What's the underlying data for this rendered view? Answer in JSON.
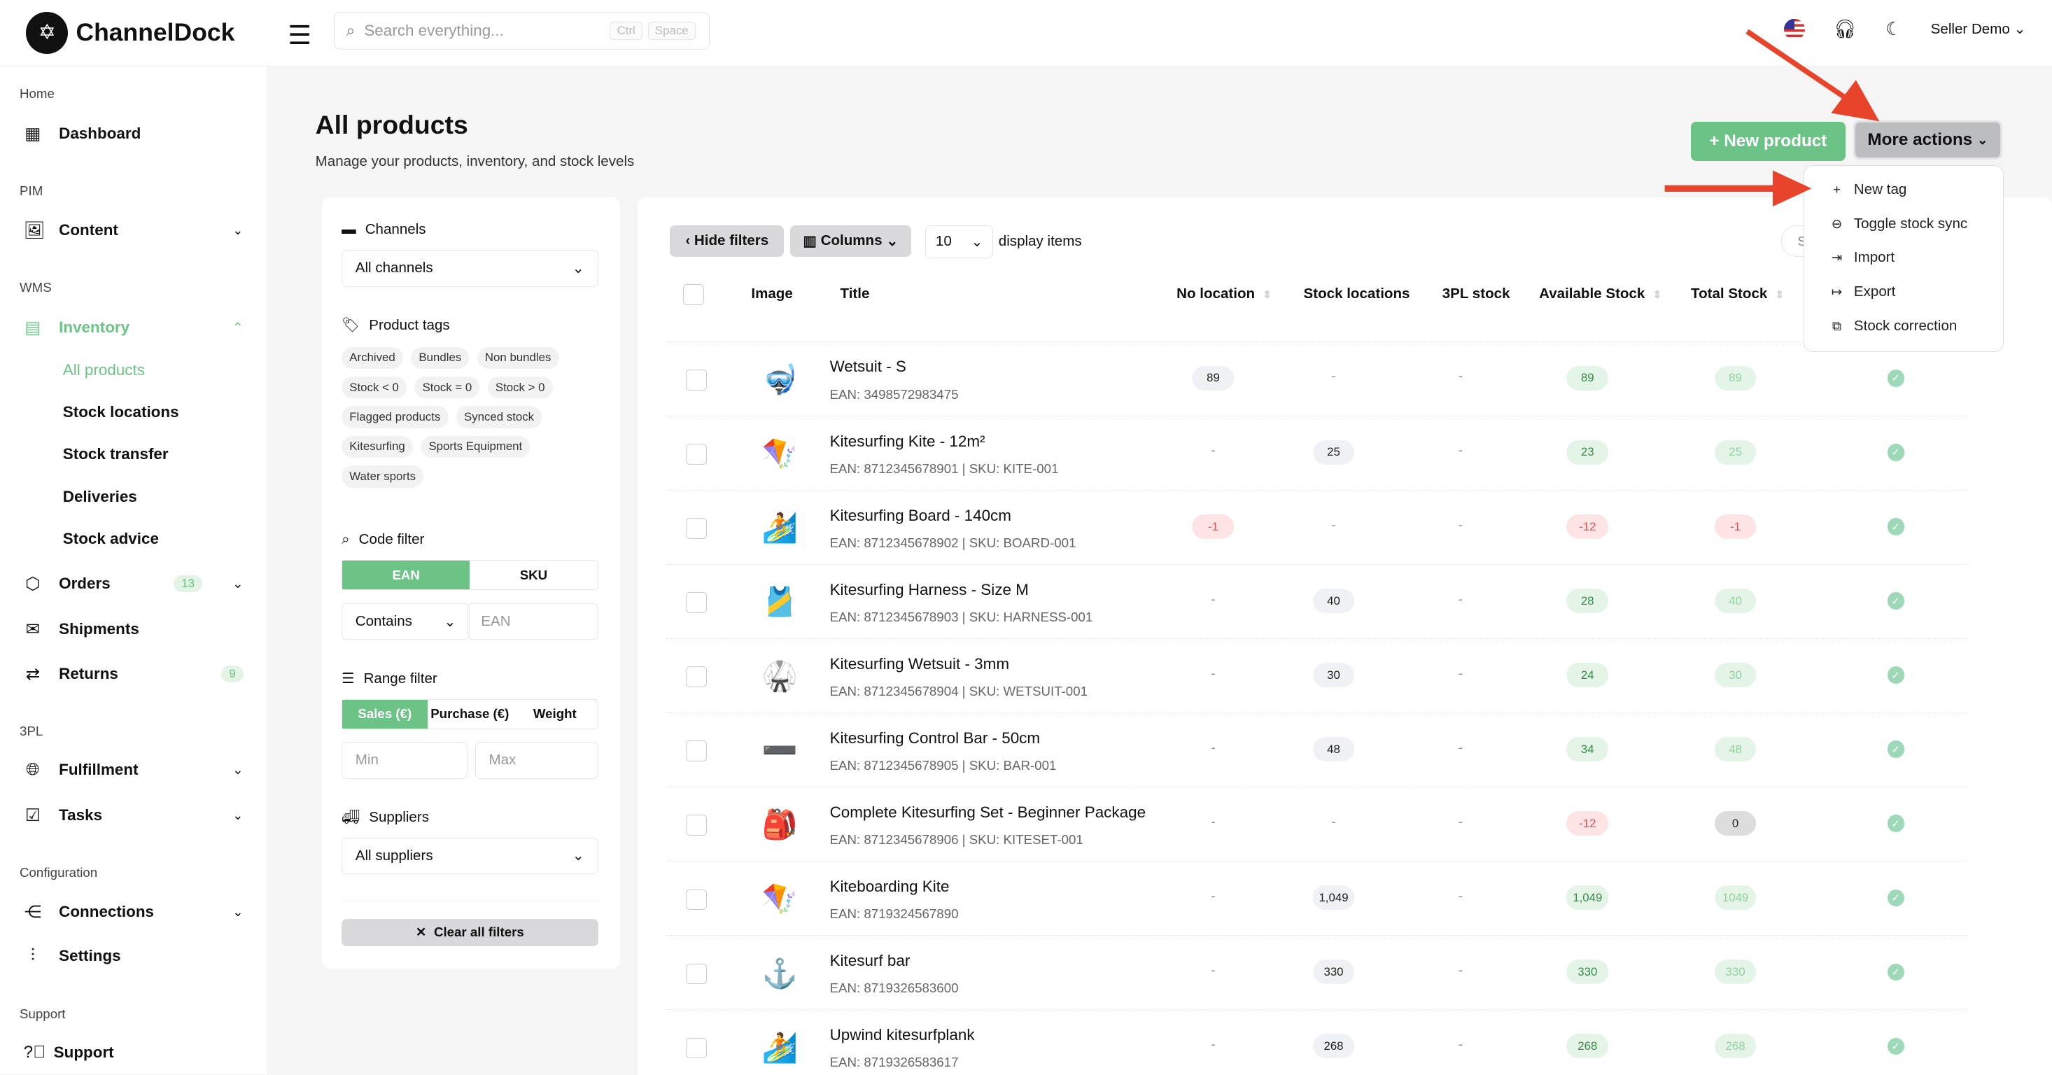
{
  "app": {
    "brand": "ChannelDock",
    "search_placeholder": "Search everything...",
    "kbd1": "Ctrl",
    "kbd2": "Space",
    "user": "Seller Demo"
  },
  "sidebar": {
    "sections": [
      "Home",
      "PIM",
      "WMS",
      "3PL",
      "Configuration",
      "Support"
    ],
    "items": [
      {
        "label": "Dashboard",
        "icon": "layout-icon"
      },
      {
        "label": "Content",
        "icon": "image-icon"
      },
      {
        "label": "Inventory",
        "icon": "table-icon"
      },
      {
        "label": "Orders",
        "icon": "box-icon",
        "count": "13"
      },
      {
        "label": "Shipments",
        "icon": "mail-icon"
      },
      {
        "label": "Returns",
        "icon": "return-icon",
        "count": "9"
      },
      {
        "label": "Fulfillment",
        "icon": "globe-icon"
      },
      {
        "label": "Tasks",
        "icon": "checkbox-icon"
      },
      {
        "label": "Connections",
        "icon": "share-icon"
      },
      {
        "label": "Settings",
        "icon": "sliders-icon"
      },
      {
        "label": "Support",
        "icon": "help-icon"
      }
    ],
    "inventory_sub": [
      "All products",
      "Stock locations",
      "Stock transfer",
      "Deliveries",
      "Stock advice"
    ]
  },
  "page": {
    "title": "All products",
    "subtitle": "Manage your products, inventory, and stock levels",
    "new_product": "+ New product",
    "more_actions": "More actions"
  },
  "menu": {
    "items": [
      "New tag",
      "Toggle stock sync",
      "Import",
      "Export",
      "Stock correction"
    ]
  },
  "filters": {
    "channels_label": "Channels",
    "channels_value": "All channels",
    "tags_label": "Product tags",
    "tags": [
      "Archived",
      "Bundles",
      "Non bundles",
      "Stock < 0",
      "Stock = 0",
      "Stock > 0",
      "Flagged products",
      "Synced stock",
      "Kitesurfing",
      "Sports Equipment",
      "Water sports"
    ],
    "code_label": "Code filter",
    "code_opts": [
      "EAN",
      "SKU"
    ],
    "contains": "Contains",
    "code_placeholder": "EAN",
    "range_label": "Range filter",
    "range_opts": [
      "Sales (€)",
      "Purchase (€)",
      "Weight"
    ],
    "min": "Min",
    "max": "Max",
    "suppliers_label": "Suppliers",
    "suppliers_value": "All suppliers",
    "clear": "Clear all filters"
  },
  "toolbar": {
    "hide_filters": "Hide filters",
    "columns": "Columns",
    "per_page": "10",
    "display_items": "display items",
    "search_partial": "S"
  },
  "table": {
    "headers": [
      "Image",
      "Title",
      "No location",
      "Stock locations",
      "3PL stock",
      "Available Stock",
      "Total Stock"
    ],
    "rows": [
      {
        "title": "Wetsuit - S",
        "code": "EAN: 3498572983475",
        "img": "🤿",
        "noloc": "89",
        "locs": "-",
        "tpl": "-",
        "avail": "89",
        "total": "89",
        "nc": "grey",
        "ac": "green",
        "tc": "lgreen"
      },
      {
        "title": "Kitesurfing Kite - 12m²",
        "code": "EAN: 8712345678901 | SKU: KITE-001",
        "img": "🪁",
        "noloc": "-",
        "locs": "25",
        "tpl": "-",
        "avail": "23",
        "total": "25",
        "ac": "green",
        "tc": "lgreen"
      },
      {
        "title": "Kitesurfing Board - 140cm",
        "code": "EAN: 8712345678902 | SKU: BOARD-001",
        "img": "🏄",
        "noloc": "-1",
        "locs": "-",
        "tpl": "-",
        "avail": "-12",
        "total": "-1",
        "nc": "red",
        "ac": "red",
        "tc": "red"
      },
      {
        "title": "Kitesurfing Harness - Size M",
        "code": "EAN: 8712345678903 | SKU: HARNESS-001",
        "img": "🎽",
        "noloc": "-",
        "locs": "40",
        "tpl": "-",
        "avail": "28",
        "total": "40",
        "ac": "green",
        "tc": "lgreen"
      },
      {
        "title": "Kitesurfing Wetsuit - 3mm",
        "code": "EAN: 8712345678904 | SKU: WETSUIT-001",
        "img": "🥋",
        "noloc": "-",
        "locs": "30",
        "tpl": "-",
        "avail": "24",
        "total": "30",
        "ac": "green",
        "tc": "lgreen"
      },
      {
        "title": "Kitesurfing Control Bar - 50cm",
        "code": "EAN: 8712345678905 | SKU: BAR-001",
        "img": "➖",
        "noloc": "-",
        "locs": "48",
        "tpl": "-",
        "avail": "34",
        "total": "48",
        "ac": "green",
        "tc": "lgreen"
      },
      {
        "title": "Complete Kitesurfing Set - Beginner Package",
        "code": "EAN: 8712345678906 | SKU: KITESET-001",
        "img": "🎒",
        "noloc": "-",
        "locs": "-",
        "tpl": "-",
        "avail": "-12",
        "total": "0",
        "ac": "red",
        "tc": "dark"
      },
      {
        "title": "Kiteboarding Kite",
        "code": "EAN: 8719324567890",
        "img": "🪁",
        "noloc": "-",
        "locs": "1,049",
        "tpl": "-",
        "avail": "1,049",
        "total": "1049",
        "ac": "green",
        "tc": "lgreen"
      },
      {
        "title": "Kitesurf bar",
        "code": "EAN: 8719326583600",
        "img": "⚓",
        "noloc": "-",
        "locs": "330",
        "tpl": "-",
        "avail": "330",
        "total": "330",
        "ac": "green",
        "tc": "lgreen"
      },
      {
        "title": "Upwind kitesurfplank",
        "code": "EAN: 8719326583617",
        "img": "🏄",
        "noloc": "-",
        "locs": "268",
        "tpl": "-",
        "avail": "268",
        "total": "268",
        "ac": "green",
        "tc": "lgreen"
      }
    ]
  },
  "colors": {
    "accent": "#6bc486",
    "annotation_arrow": "#e8432b"
  }
}
